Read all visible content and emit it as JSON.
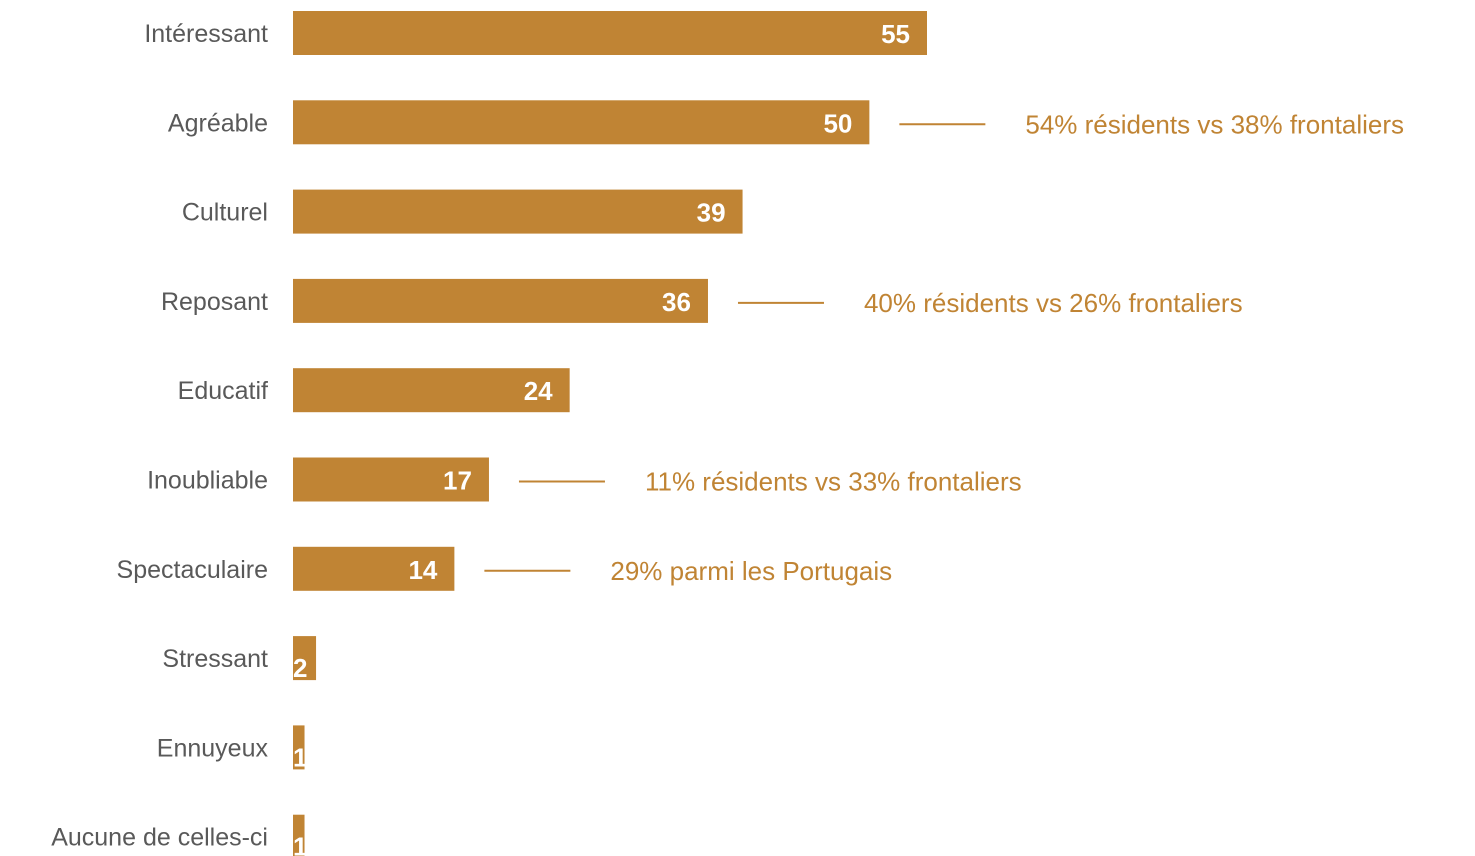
{
  "chart_data": {
    "type": "bar",
    "orientation": "horizontal",
    "title": "",
    "xlabel": "",
    "ylabel": "",
    "categories": [
      "Intéressant",
      "Agréable",
      "Culturel",
      "Reposant",
      "Educatif",
      "Inoubliable",
      "Spectaculaire",
      "Stressant",
      "Ennuyeux",
      "Aucune de celles-ci"
    ],
    "values": [
      55,
      50,
      39,
      36,
      24,
      17,
      14,
      2,
      1,
      1
    ],
    "data_labels": [
      "55",
      "50",
      "39",
      "36",
      "24",
      "17",
      "14",
      "2",
      "1",
      "1"
    ],
    "xlim": [
      0,
      55
    ],
    "grid": false,
    "legend": "none",
    "bar_color": "#C08434",
    "annotations": [
      {
        "category": "Agréable",
        "text": "54% résidents vs 38% frontaliers"
      },
      {
        "category": "Reposant",
        "text": "40% résidents vs 26% frontaliers"
      },
      {
        "category": "Inoubliable",
        "text": "11% résidents vs 33% frontaliers"
      },
      {
        "category": "Spectaculaire",
        "text": "29% parmi les Portugais"
      }
    ],
    "annotation_color": "#C08434"
  }
}
